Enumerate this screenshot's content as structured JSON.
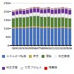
{
  "chart_data": {
    "type": "bar",
    "stacked": true,
    "categories": [
      "90",
      "91",
      "92",
      "93",
      "94",
      "95",
      "96",
      "97",
      "98",
      "99",
      "00",
      "01",
      "02",
      "03",
      "04",
      "05",
      "06"
    ],
    "series": [
      {
        "name": "エネルギー転換",
        "color": "#4472C4",
        "values": [
          98,
          100,
          101,
          100,
          102,
          104,
          105,
          104,
          101,
          101,
          102,
          99,
          100,
          101,
          103,
          101,
          99
        ]
      },
      {
        "name": "産業",
        "color": "#C9A84C",
        "values": [
          8,
          8,
          8,
          8,
          8,
          8,
          8,
          8,
          8,
          8,
          8,
          7,
          7,
          7,
          7,
          7,
          7
        ]
      },
      {
        "name": "運輸",
        "color": "#548235",
        "values": [
          52,
          54,
          55,
          55,
          56,
          58,
          59,
          60,
          58,
          57,
          58,
          57,
          56,
          55,
          54,
          53,
          52
        ]
      },
      {
        "name": "民生家庭",
        "color": "#F2F2F2",
        "values": [
          18,
          19,
          20,
          20,
          20,
          21,
          22,
          22,
          21,
          22,
          23,
          22,
          23,
          24,
          25,
          25,
          24
        ]
      },
      {
        "name": "民生業務",
        "color": "#7030A0",
        "values": [
          20,
          21,
          22,
          22,
          22,
          23,
          24,
          24,
          23,
          24,
          25,
          24,
          25,
          26,
          27,
          27,
          26
        ]
      },
      {
        "name": "工業プロセス",
        "color": "#D9D9D9",
        "values": [
          5,
          5,
          5,
          5,
          5,
          5,
          5,
          5,
          5,
          5,
          5,
          5,
          5,
          5,
          5,
          5,
          5
        ]
      },
      {
        "name": "廃棄物",
        "color": "#FF0000",
        "values": [
          2,
          2,
          2,
          2,
          2,
          2,
          2,
          2,
          2,
          2,
          2,
          2,
          2,
          2,
          2,
          2,
          2
        ]
      }
    ],
    "ylim": [
      0,
      250
    ],
    "yticks": [
      0,
      50,
      100,
      150,
      200,
      250
    ],
    "grid": true,
    "legend": "bottom"
  }
}
